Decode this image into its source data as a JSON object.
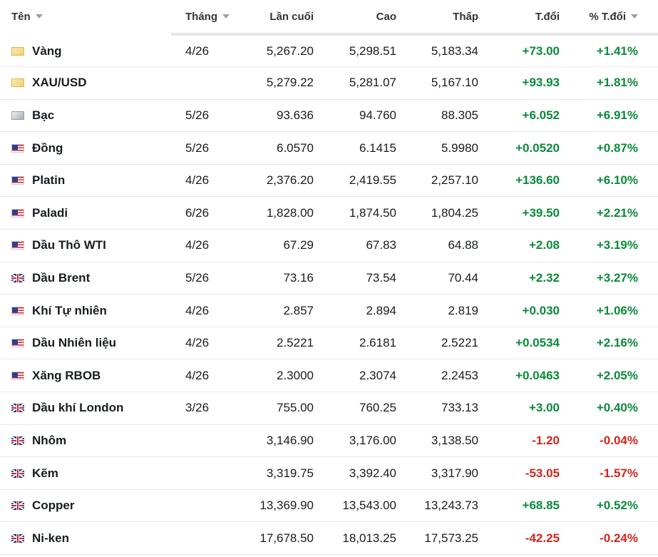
{
  "columns": {
    "name": "Tên",
    "month": "Tháng",
    "last": "Lần cuối",
    "high": "Cao",
    "low": "Thấp",
    "change": "T.đổi",
    "change_pct": "% T.đổi"
  },
  "colors": {
    "positive": "#0a8a3a",
    "negative": "#d0261d"
  },
  "rows": [
    {
      "name": "Vàng",
      "flag": "gold-icon",
      "month": "4/26",
      "last": "5,267.20",
      "high": "5,298.51",
      "low": "5,183.34",
      "change": "+73.00",
      "change_pct": "+1.41%",
      "dir": "pos"
    },
    {
      "name": "XAU/USD",
      "flag": "gold-icon",
      "month": "",
      "last": "5,279.22",
      "high": "5,281.07",
      "low": "5,167.10",
      "change": "+93.93",
      "change_pct": "+1.81%",
      "dir": "pos"
    },
    {
      "name": "Bạc",
      "flag": "silver-icon",
      "month": "5/26",
      "last": "93.636",
      "high": "94.760",
      "low": "88.305",
      "change": "+6.052",
      "change_pct": "+6.91%",
      "dir": "pos"
    },
    {
      "name": "Đồng",
      "flag": "us-flag-icon",
      "month": "5/26",
      "last": "6.0570",
      "high": "6.1415",
      "low": "5.9980",
      "change": "+0.0520",
      "change_pct": "+0.87%",
      "dir": "pos"
    },
    {
      "name": "Platin",
      "flag": "us-flag-icon",
      "month": "4/26",
      "last": "2,376.20",
      "high": "2,419.55",
      "low": "2,257.10",
      "change": "+136.60",
      "change_pct": "+6.10%",
      "dir": "pos"
    },
    {
      "name": "Paladi",
      "flag": "us-flag-icon",
      "month": "6/26",
      "last": "1,828.00",
      "high": "1,874.50",
      "low": "1,804.25",
      "change": "+39.50",
      "change_pct": "+2.21%",
      "dir": "pos"
    },
    {
      "name": "Dầu Thô WTI",
      "flag": "us-flag-icon",
      "month": "4/26",
      "last": "67.29",
      "high": "67.83",
      "low": "64.88",
      "change": "+2.08",
      "change_pct": "+3.19%",
      "dir": "pos"
    },
    {
      "name": "Dầu Brent",
      "flag": "uk-flag-icon",
      "month": "5/26",
      "last": "73.16",
      "high": "73.54",
      "low": "70.44",
      "change": "+2.32",
      "change_pct": "+3.27%",
      "dir": "pos"
    },
    {
      "name": "Khí Tự nhiên",
      "flag": "us-flag-icon",
      "month": "4/26",
      "last": "2.857",
      "high": "2.894",
      "low": "2.819",
      "change": "+0.030",
      "change_pct": "+1.06%",
      "dir": "pos"
    },
    {
      "name": "Dầu Nhiên liệu",
      "flag": "us-flag-icon",
      "month": "4/26",
      "last": "2.5221",
      "high": "2.6181",
      "low": "2.5221",
      "change": "+0.0534",
      "change_pct": "+2.16%",
      "dir": "pos"
    },
    {
      "name": "Xăng RBOB",
      "flag": "us-flag-icon",
      "month": "4/26",
      "last": "2.3000",
      "high": "2.3074",
      "low": "2.2453",
      "change": "+0.0463",
      "change_pct": "+2.05%",
      "dir": "pos"
    },
    {
      "name": "Dầu khí London",
      "flag": "uk-flag-icon",
      "month": "3/26",
      "last": "755.00",
      "high": "760.25",
      "low": "733.13",
      "change": "+3.00",
      "change_pct": "+0.40%",
      "dir": "pos"
    },
    {
      "name": "Nhôm",
      "flag": "uk-flag-icon",
      "month": "",
      "last": "3,146.90",
      "high": "3,176.00",
      "low": "3,138.50",
      "change": "-1.20",
      "change_pct": "-0.04%",
      "dir": "neg"
    },
    {
      "name": "Kẽm",
      "flag": "uk-flag-icon",
      "month": "",
      "last": "3,319.75",
      "high": "3,392.40",
      "low": "3,317.90",
      "change": "-53.05",
      "change_pct": "-1.57%",
      "dir": "neg"
    },
    {
      "name": "Copper",
      "flag": "uk-flag-icon",
      "month": "",
      "last": "13,369.90",
      "high": "13,543.00",
      "low": "13,243.73",
      "change": "+68.85",
      "change_pct": "+0.52%",
      "dir": "pos"
    },
    {
      "name": "Ni-ken",
      "flag": "uk-flag-icon",
      "month": "",
      "last": "17,678.50",
      "high": "18,013.25",
      "low": "17,573.25",
      "change": "-42.25",
      "change_pct": "-0.24%",
      "dir": "neg"
    }
  ]
}
